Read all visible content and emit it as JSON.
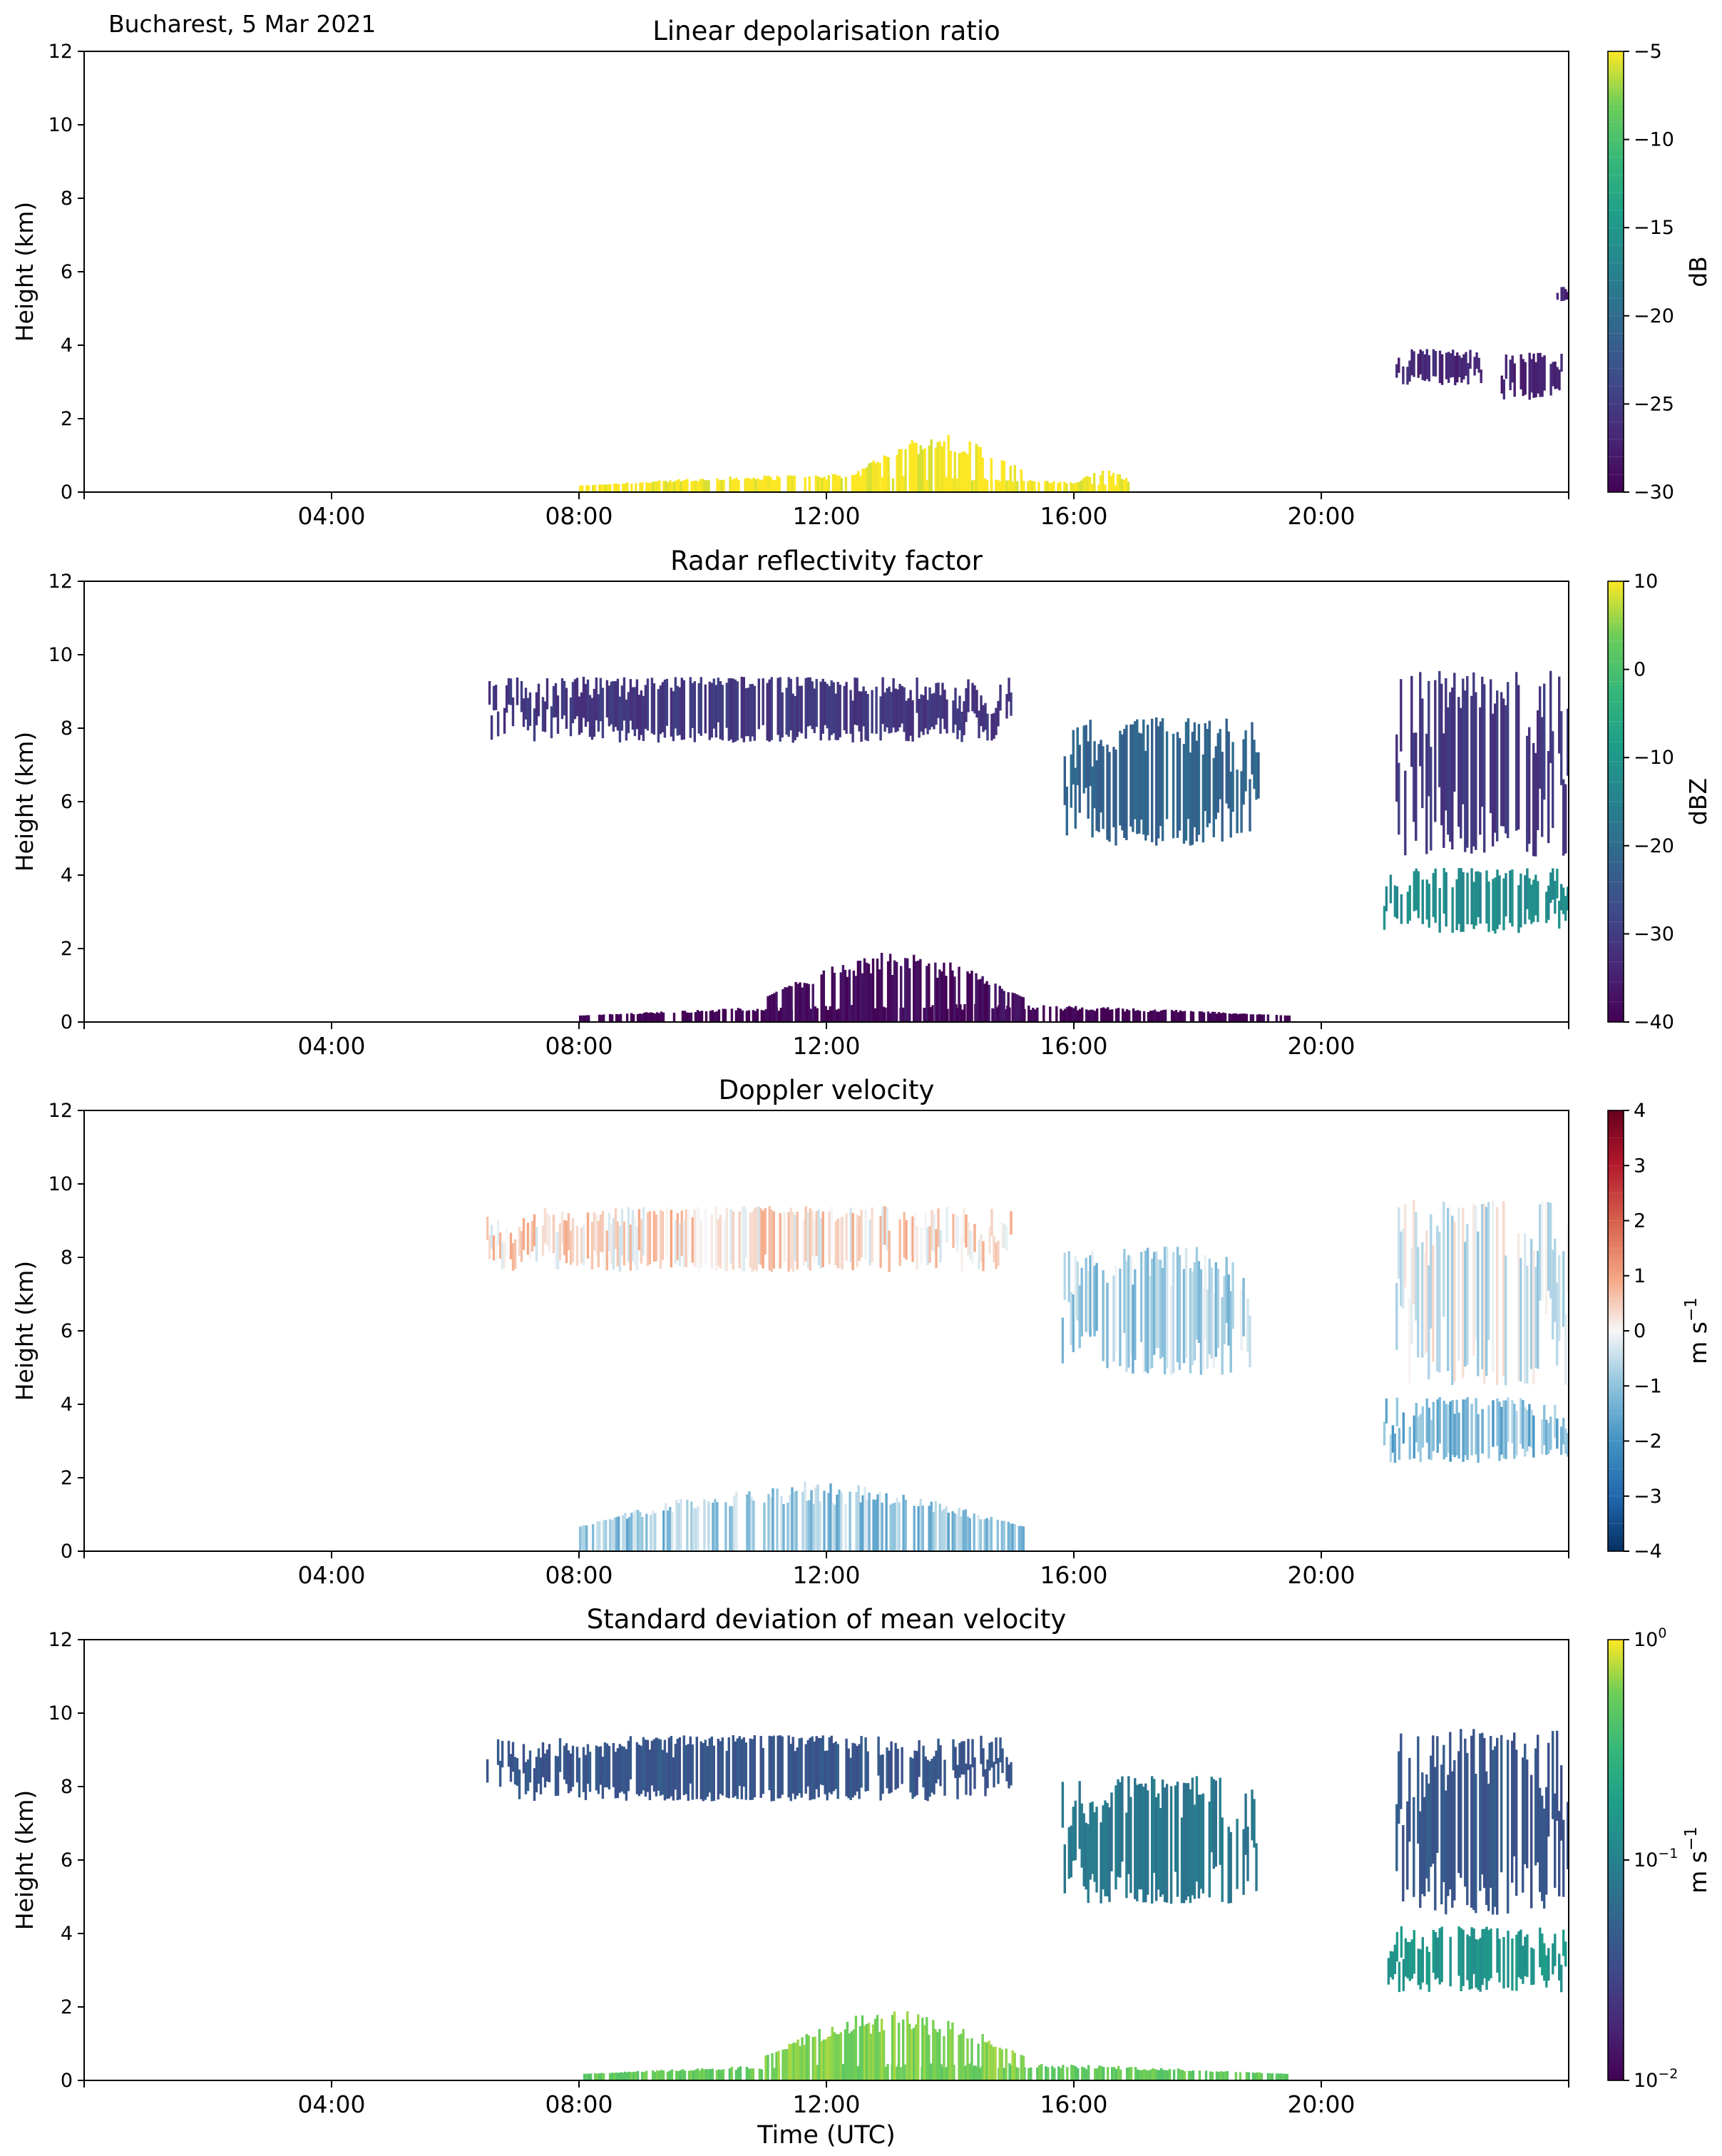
{
  "figure": {
    "location_date": "Bucharest, 5 Mar 2021",
    "xlabel": "Time (UTC)"
  },
  "chart_data": [
    {
      "type": "heatmap",
      "title": "Linear depolarisation ratio",
      "ylabel": "Height (km)",
      "ylim": [
        0,
        12
      ],
      "yticks": [
        "0",
        "2",
        "4",
        "6",
        "8",
        "10",
        "12"
      ],
      "xlim_hours": [
        0,
        24
      ],
      "xticks": [
        "04:00",
        "08:00",
        "12:00",
        "16:00",
        "20:00"
      ],
      "colormap": "viridis",
      "colorbar": {
        "label": "dB",
        "scale": "linear",
        "range": [
          -30,
          -5
        ],
        "ticks": [
          "-30",
          "-25",
          "-20",
          "-15",
          "-10",
          "-5"
        ],
        "levels": 25
      },
      "features": [
        {
          "desc": "near-surface layer",
          "t": [
            8.0,
            16.8
          ],
          "z": [
            0.0,
            0.5
          ],
          "value": -5
        },
        {
          "desc": "surface growth peak",
          "t": [
            12.5,
            15.2
          ],
          "z": [
            0.0,
            1.6
          ],
          "value": -5
        },
        {
          "desc": "late afternoon surface",
          "t": [
            16.0,
            17.0
          ],
          "z": [
            0.0,
            0.6
          ],
          "value": -5
        },
        {
          "desc": "night cloud",
          "t": [
            21.2,
            22.6
          ],
          "z": [
            2.9,
            3.9
          ],
          "value": -27
        },
        {
          "desc": "night cloud",
          "t": [
            22.9,
            23.9
          ],
          "z": [
            2.5,
            3.8
          ],
          "value": -27
        },
        {
          "desc": "small patch",
          "t": [
            23.8,
            24.0
          ],
          "z": [
            5.2,
            5.6
          ],
          "value": -27
        }
      ]
    },
    {
      "type": "heatmap",
      "title": "Radar reflectivity factor",
      "ylabel": "Height (km)",
      "ylim": [
        0,
        12
      ],
      "yticks": [
        "0",
        "2",
        "4",
        "6",
        "8",
        "10",
        "12"
      ],
      "xlim_hours": [
        0,
        24
      ],
      "xticks": [
        "04:00",
        "08:00",
        "12:00",
        "16:00",
        "20:00"
      ],
      "colormap": "viridis",
      "colorbar": {
        "label": "dBZ",
        "scale": "linear",
        "range": [
          -40,
          15
        ],
        "ticks": [
          "-40",
          "-30",
          "-20",
          "-10",
          "0",
          "10"
        ],
        "levels": 22
      },
      "features": [
        {
          "desc": "boundary layer echoes",
          "t": [
            8.0,
            19.5
          ],
          "z": [
            0.0,
            0.5
          ],
          "value": -40
        },
        {
          "desc": "growing BL echoes",
          "t": [
            11.0,
            15.2
          ],
          "z": [
            0.0,
            1.9
          ],
          "value": -38
        },
        {
          "desc": "cirrus patches",
          "t": [
            6.5,
            15.0
          ],
          "z": [
            7.6,
            9.4
          ],
          "value": -30
        },
        {
          "desc": "descending cloud",
          "t": [
            15.8,
            19.0
          ],
          "z": [
            4.8,
            8.3
          ],
          "value": -20
        },
        {
          "desc": "low dense cloud",
          "t": [
            21.0,
            24.0
          ],
          "z": [
            2.4,
            4.2
          ],
          "value": -10
        },
        {
          "desc": "mid-level cloud",
          "t": [
            21.2,
            24.0
          ],
          "z": [
            4.5,
            9.6
          ],
          "value": -30
        }
      ]
    },
    {
      "type": "heatmap",
      "title": "Doppler velocity",
      "ylabel": "Height (km)",
      "ylim": [
        0,
        12
      ],
      "yticks": [
        "0",
        "2",
        "4",
        "6",
        "8",
        "10",
        "12"
      ],
      "xlim_hours": [
        0,
        24
      ],
      "xticks": [
        "04:00",
        "08:00",
        "12:00",
        "16:00",
        "20:00"
      ],
      "colormap": "RdBu_r",
      "colorbar": {
        "label": "m s",
        "label_exponent": "−1",
        "scale": "linear",
        "range": [
          -4,
          4
        ],
        "ticks": [
          "-4",
          "-3",
          "-2",
          "-1",
          "0",
          "1",
          "2",
          "3",
          "4"
        ],
        "levels": 16
      },
      "features": [
        {
          "desc": "boundary layer mixed",
          "t": [
            8.0,
            15.2
          ],
          "z": [
            0.0,
            1.9
          ],
          "value": -1.0
        },
        {
          "desc": "cirrus",
          "t": [
            6.5,
            15.0
          ],
          "z": [
            7.6,
            9.4
          ],
          "value": 0.3
        },
        {
          "desc": "descending cloud",
          "t": [
            15.8,
            19.0
          ],
          "z": [
            4.8,
            8.3
          ],
          "value": -0.8
        },
        {
          "desc": "low cloud",
          "t": [
            21.0,
            24.0
          ],
          "z": [
            2.4,
            4.2
          ],
          "value": -1.3
        },
        {
          "desc": "mid-level cloud",
          "t": [
            21.2,
            24.0
          ],
          "z": [
            4.5,
            9.6
          ],
          "value": -0.3
        }
      ]
    },
    {
      "type": "heatmap",
      "title": "Standard deviation of mean velocity",
      "ylabel": "Height (km)",
      "ylim": [
        0,
        12
      ],
      "yticks": [
        "0",
        "2",
        "4",
        "6",
        "8",
        "10",
        "12"
      ],
      "xlim_hours": [
        0,
        24
      ],
      "xticks": [
        "04:00",
        "08:00",
        "12:00",
        "16:00",
        "20:00"
      ],
      "colormap": "viridis",
      "colorbar": {
        "label": "m s",
        "label_exponent": "−1",
        "scale": "log",
        "range": [
          0.01,
          1
        ],
        "ticks": [
          {
            "base": "10",
            "exp": "−2"
          },
          {
            "base": "10",
            "exp": "−1"
          },
          {
            "base": "10",
            "exp": "0"
          }
        ]
      },
      "features": [
        {
          "desc": "boundary layer",
          "t": [
            8.0,
            19.5
          ],
          "z": [
            0.0,
            0.5
          ],
          "value": 0.5
        },
        {
          "desc": "growing BL",
          "t": [
            11.0,
            15.2
          ],
          "z": [
            0.0,
            1.9
          ],
          "value": 0.6
        },
        {
          "desc": "cirrus",
          "t": [
            6.5,
            15.0
          ],
          "z": [
            7.6,
            9.4
          ],
          "value": 0.04
        },
        {
          "desc": "descending cloud",
          "t": [
            15.8,
            19.0
          ],
          "z": [
            4.8,
            8.3
          ],
          "value": 0.08
        },
        {
          "desc": "low cloud",
          "t": [
            21.0,
            24.0
          ],
          "z": [
            2.4,
            4.2
          ],
          "value": 0.15
        },
        {
          "desc": "mid-level cloud",
          "t": [
            21.2,
            24.0
          ],
          "z": [
            4.5,
            9.6
          ],
          "value": 0.04
        }
      ]
    }
  ]
}
